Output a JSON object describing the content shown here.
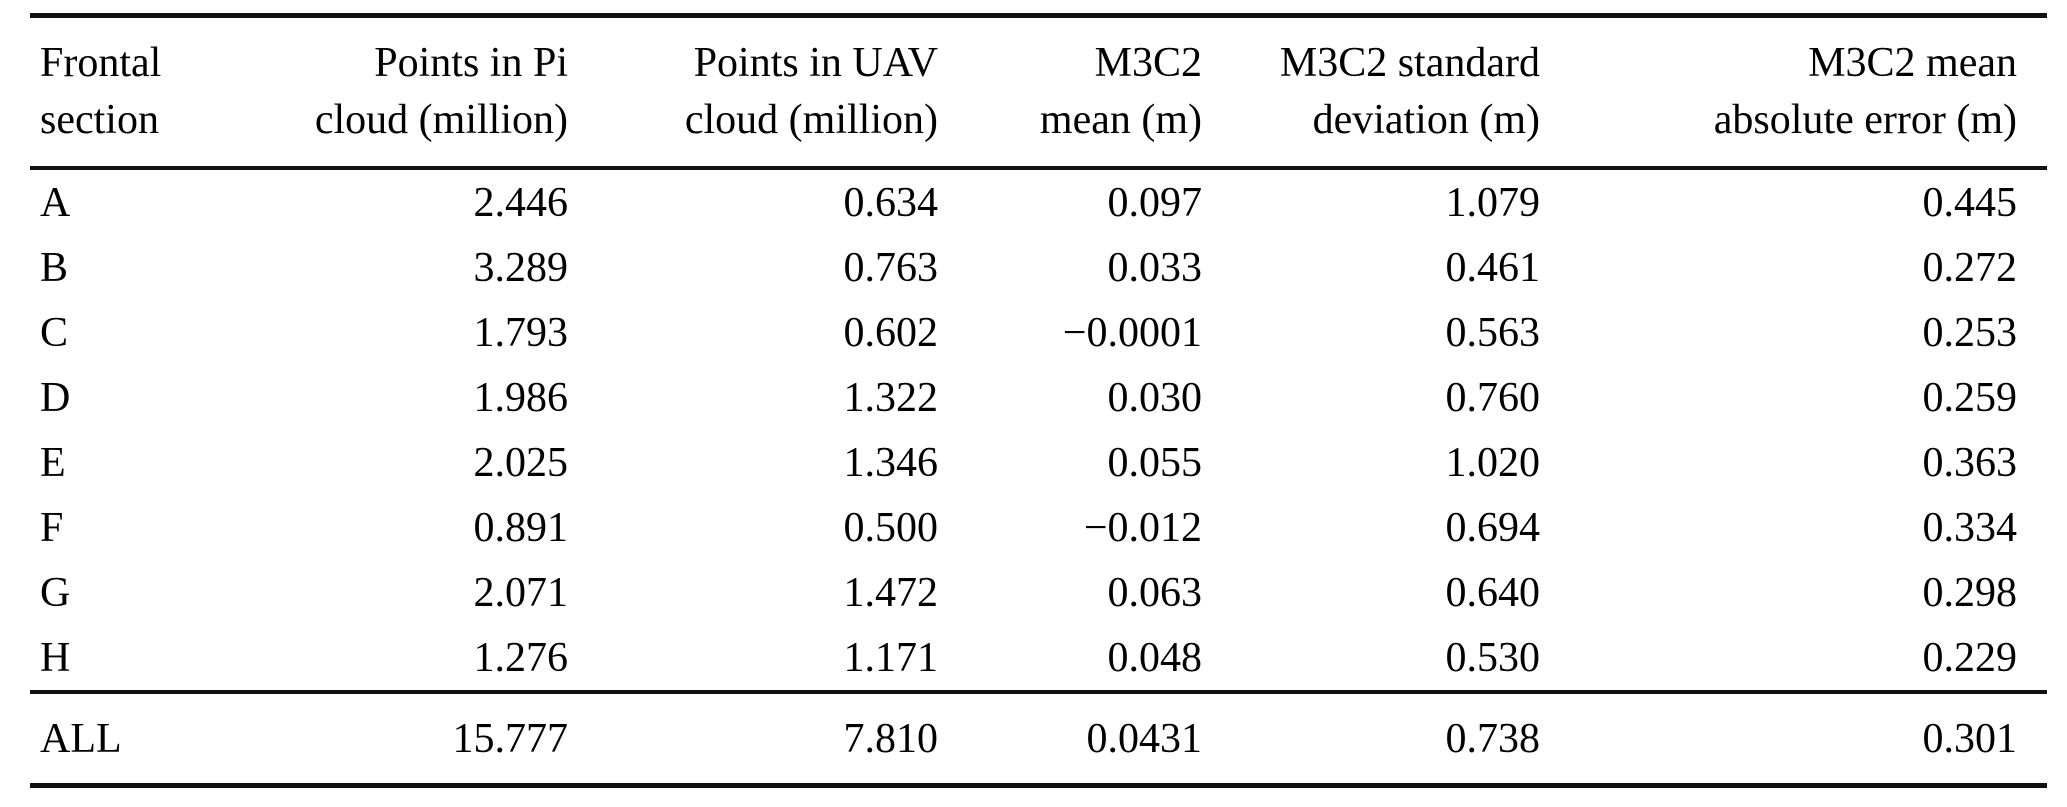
{
  "table": {
    "columns": [
      {
        "line1": "Frontal",
        "line2": "section"
      },
      {
        "line1": "Points in Pi",
        "line2": "cloud (million)"
      },
      {
        "line1": "Points in UAV",
        "line2": "cloud (million)"
      },
      {
        "line1": "M3C2",
        "line2": "mean (m)"
      },
      {
        "line1": "M3C2 standard",
        "line2": "deviation (m)"
      },
      {
        "line1": "M3C2 mean",
        "line2": "absolute error (m)"
      }
    ],
    "rows": [
      {
        "section": "A",
        "values": [
          "2.446",
          "0.634",
          "0.097",
          "1.079",
          "0.445"
        ]
      },
      {
        "section": "B",
        "values": [
          "3.289",
          "0.763",
          "0.033",
          "0.461",
          "0.272"
        ]
      },
      {
        "section": "C",
        "values": [
          "1.793",
          "0.602",
          "−0.0001",
          "0.563",
          "0.253"
        ]
      },
      {
        "section": "D",
        "values": [
          "1.986",
          "1.322",
          "0.030",
          "0.760",
          "0.259"
        ]
      },
      {
        "section": "E",
        "values": [
          "2.025",
          "1.346",
          "0.055",
          "1.020",
          "0.363"
        ]
      },
      {
        "section": "F",
        "values": [
          "0.891",
          "0.500",
          "−0.012",
          "0.694",
          "0.334"
        ]
      },
      {
        "section": "G",
        "values": [
          "2.071",
          "1.472",
          "0.063",
          "0.640",
          "0.298"
        ]
      },
      {
        "section": "H",
        "values": [
          "1.276",
          "1.171",
          "0.048",
          "0.530",
          "0.229"
        ]
      }
    ],
    "footer": {
      "section": "ALL",
      "values": [
        "15.777",
        "7.810",
        "0.0431",
        "0.738",
        "0.301"
      ]
    }
  },
  "chart_data": {
    "type": "table",
    "title": "",
    "columns": [
      "Frontal section",
      "Points in Pi cloud (million)",
      "Points in UAV cloud (million)",
      "M3C2 mean (m)",
      "M3C2 standard deviation (m)",
      "M3C2 mean absolute error (m)"
    ],
    "rows": [
      [
        "A",
        2.446,
        0.634,
        0.097,
        1.079,
        0.445
      ],
      [
        "B",
        3.289,
        0.763,
        0.033,
        0.461,
        0.272
      ],
      [
        "C",
        1.793,
        0.602,
        -0.0001,
        0.563,
        0.253
      ],
      [
        "D",
        1.986,
        1.322,
        0.03,
        0.76,
        0.259
      ],
      [
        "E",
        2.025,
        1.346,
        0.055,
        1.02,
        0.363
      ],
      [
        "F",
        0.891,
        0.5,
        -0.012,
        0.694,
        0.334
      ],
      [
        "G",
        2.071,
        1.472,
        0.063,
        0.64,
        0.298
      ],
      [
        "H",
        1.276,
        1.171,
        0.048,
        0.53,
        0.229
      ],
      [
        "ALL",
        15.777,
        7.81,
        0.0431,
        0.738,
        0.301
      ]
    ]
  },
  "colors": {
    "text": "#000000",
    "background": "#ffffff",
    "rule": "#111111"
  }
}
